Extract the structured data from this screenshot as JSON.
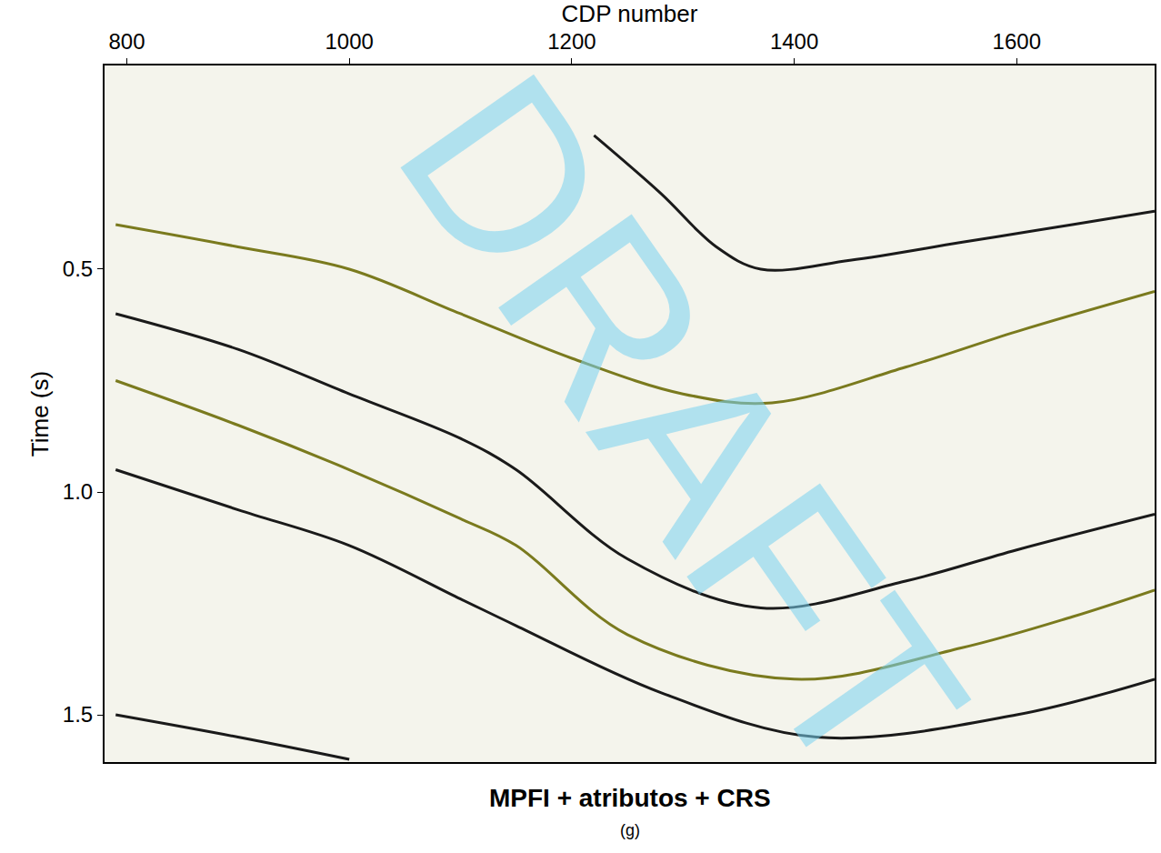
{
  "chart_data": {
    "type": "line",
    "title": "MPFI + atributos + CRS",
    "subtitle": "(g)",
    "x_label": "CDP number",
    "y_label": "Time (s)",
    "annotations": [
      "DRAFT"
    ],
    "xlim": [
      780,
      1724
    ],
    "xticks": [
      800,
      1000,
      1200,
      1400,
      1600
    ],
    "ylim": [
      1.606,
      0.043
    ],
    "yticks": [
      0.5,
      {
        "value": 1.0,
        "label": "1.0"
      },
      1.5
    ],
    "grid": false,
    "series": [
      {
        "color": "#1a1a1a",
        "x": [
          1220,
          1280,
          1330,
          1370,
          1450,
          1550,
          1650,
          1724
        ],
        "values": [
          0.2,
          0.33,
          0.45,
          0.5,
          0.48,
          0.44,
          0.4,
          0.37
        ]
      },
      {
        "color": "#7a7a1e",
        "x": [
          790,
          900,
          1000,
          1100,
          1200,
          1300,
          1380,
          1500,
          1600,
          1724
        ],
        "values": [
          0.4,
          0.45,
          0.5,
          0.6,
          0.7,
          0.78,
          0.8,
          0.72,
          0.64,
          0.55
        ]
      },
      {
        "color": "#1a1a1a",
        "x": [
          790,
          900,
          1000,
          1100,
          1150,
          1250,
          1370,
          1500,
          1600,
          1724
        ],
        "values": [
          0.6,
          0.68,
          0.78,
          0.88,
          0.95,
          1.15,
          1.26,
          1.2,
          1.13,
          1.05
        ]
      },
      {
        "color": "#7a7a1e",
        "x": [
          790,
          900,
          1000,
          1100,
          1150,
          1250,
          1400,
          1550,
          1650,
          1724
        ],
        "values": [
          0.75,
          0.85,
          0.95,
          1.06,
          1.12,
          1.32,
          1.42,
          1.35,
          1.28,
          1.22
        ]
      },
      {
        "color": "#1a1a1a",
        "x": [
          790,
          900,
          1000,
          1100,
          1150,
          1280,
          1420,
          1600,
          1724
        ],
        "values": [
          0.95,
          1.04,
          1.12,
          1.24,
          1.3,
          1.45,
          1.55,
          1.5,
          1.42
        ]
      },
      {
        "color": "#1a1a1a",
        "x": [
          790,
          900,
          1000
        ],
        "values": [
          1.5,
          1.55,
          1.6
        ]
      }
    ]
  }
}
